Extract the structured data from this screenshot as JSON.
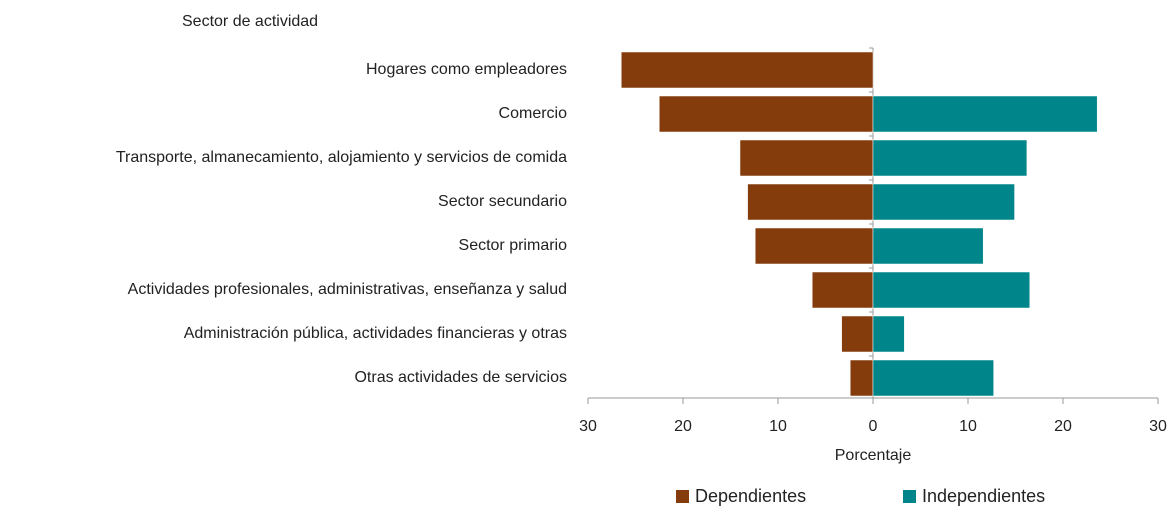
{
  "chart_data": {
    "type": "bar",
    "orientation": "horizontal",
    "title": "Sector de actividad",
    "xlabel": "Porcentaje",
    "categories": [
      "Hogares como empleadores",
      "Comercio",
      "Transporte, almanecamiento, alojamiento y servicios de comida",
      "Sector secundario",
      "Sector primario",
      "Actividades profesionales, administrativas, enseñanza y salud",
      "Administración pública, actividades financieras y otras",
      "Otras actividades de servicios"
    ],
    "series": [
      {
        "name": "Dependientes",
        "color": "#843c0c",
        "values": [
          -26.5,
          -22.5,
          -14.0,
          -13.2,
          -12.4,
          -6.4,
          -3.3,
          -2.4
        ]
      },
      {
        "name": "Independientes",
        "color": "#00858a",
        "values": [
          null,
          23.6,
          16.2,
          14.9,
          11.6,
          16.5,
          3.3,
          12.7
        ]
      }
    ],
    "xlim": [
      -30,
      30
    ],
    "xticks": [
      {
        "value": -30,
        "label": "30"
      },
      {
        "value": -20,
        "label": "20"
      },
      {
        "value": -10,
        "label": "10"
      },
      0,
      10,
      20,
      30
    ],
    "legend": "bottom"
  }
}
